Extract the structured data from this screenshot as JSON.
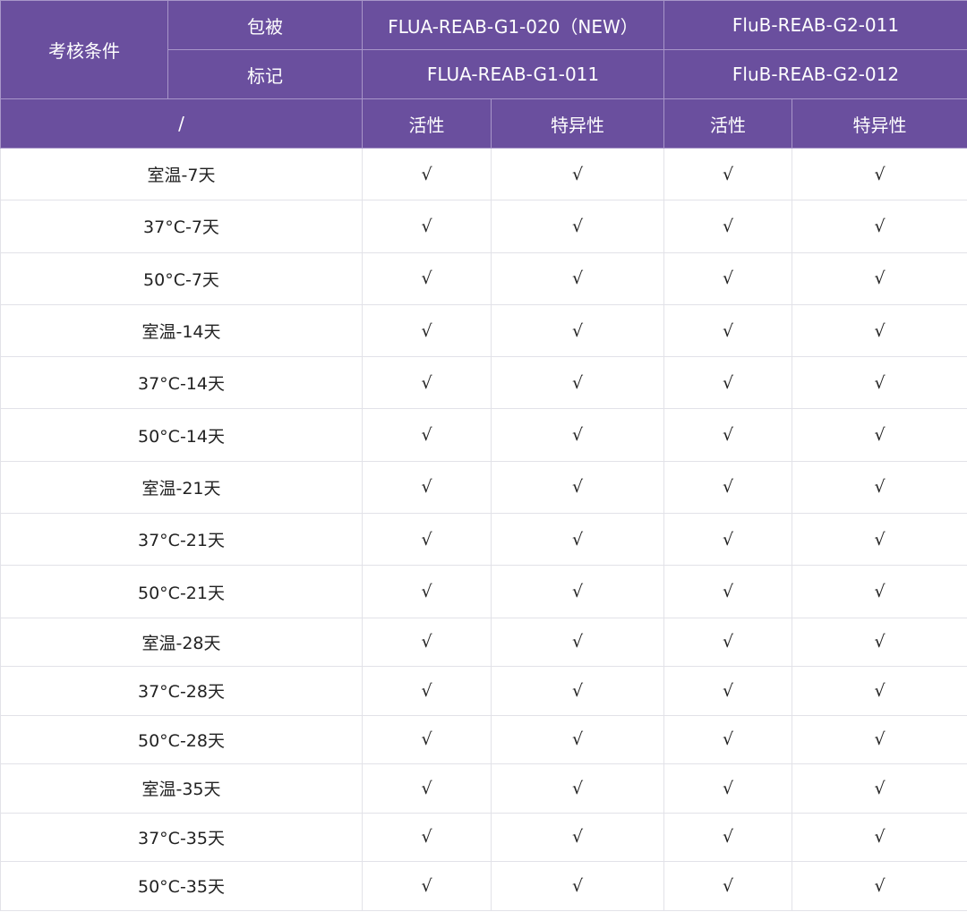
{
  "header": {
    "condition_label": "考核条件",
    "coating_label": "包被",
    "label_label": "标记",
    "slash": "/",
    "flua_coating": "FLUA-REAB-G1-020（NEW）",
    "flub_coating": "FluB-REAB-G2-011",
    "flua_label": "FLUA-REAB-G1-011",
    "flub_label": "FluB-REAB-G2-012",
    "activity": "活性",
    "specificity": "特异性"
  },
  "colors": {
    "header_bg": "#6a4f9e"
  },
  "rows": [
    {
      "condition": "室温-7天",
      "values": [
        "√",
        "√",
        "√",
        "√"
      ]
    },
    {
      "condition": "37°C-7天",
      "values": [
        "√",
        "√",
        "√",
        "√"
      ]
    },
    {
      "condition": "50°C-7天",
      "values": [
        "√",
        "√",
        "√",
        "√"
      ]
    },
    {
      "condition": "室温-14天",
      "values": [
        "√",
        "√",
        "√",
        "√"
      ]
    },
    {
      "condition": "37°C-14天",
      "values": [
        "√",
        "√",
        "√",
        "√"
      ]
    },
    {
      "condition": "50°C-14天",
      "values": [
        "√",
        "√",
        "√",
        "√"
      ]
    },
    {
      "condition": "室温-21天",
      "values": [
        "√",
        "√",
        "√",
        "√"
      ]
    },
    {
      "condition": "37°C-21天",
      "values": [
        "√",
        "√",
        "√",
        "√"
      ]
    },
    {
      "condition": "50°C-21天",
      "values": [
        "√",
        "√",
        "√",
        "√"
      ]
    },
    {
      "condition": "室温-28天",
      "values": [
        "√",
        "√",
        "√",
        "√"
      ]
    },
    {
      "condition": "37°C-28天",
      "values": [
        "√",
        "√",
        "√",
        "√"
      ]
    },
    {
      "condition": "50°C-28天",
      "values": [
        "√",
        "√",
        "√",
        "√"
      ]
    },
    {
      "condition": "室温-35天",
      "values": [
        "√",
        "√",
        "√",
        "√"
      ]
    },
    {
      "condition": "37°C-35天",
      "values": [
        "√",
        "√",
        "√",
        "√"
      ]
    },
    {
      "condition": "50°C-35天",
      "values": [
        "√",
        "√",
        "√",
        "√"
      ]
    }
  ]
}
